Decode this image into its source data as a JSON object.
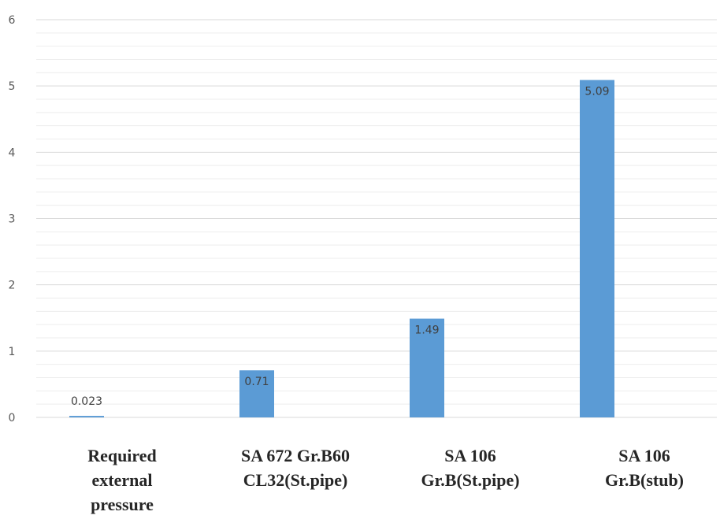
{
  "chart_data": {
    "type": "bar",
    "categories": [
      [
        "Required",
        "external",
        "pressure"
      ],
      [
        "SA 672 Gr.B60",
        "CL32(St.pipe)"
      ],
      [
        "SA 106",
        "Gr.B(St.pipe)"
      ],
      [
        "SA 106",
        "Gr.B(stub)"
      ]
    ],
    "values": [
      0.023,
      0.71,
      1.49,
      5.09
    ],
    "data_labels": [
      "0.023",
      "0.71",
      "1.49",
      "5.09"
    ],
    "yticks": [
      "0",
      "1",
      "2",
      "3",
      "4",
      "5",
      "6"
    ],
    "ylim": [
      0,
      6
    ],
    "minor_step": 0.2,
    "grid": true,
    "legend": "none",
    "title": "",
    "xlabel": "",
    "ylabel": "",
    "colors": {
      "bar": "#5B9BD5",
      "major_grid": "#D9D9D9",
      "minor_grid": "#EDEDED",
      "axis": "#D9D9D9"
    }
  }
}
